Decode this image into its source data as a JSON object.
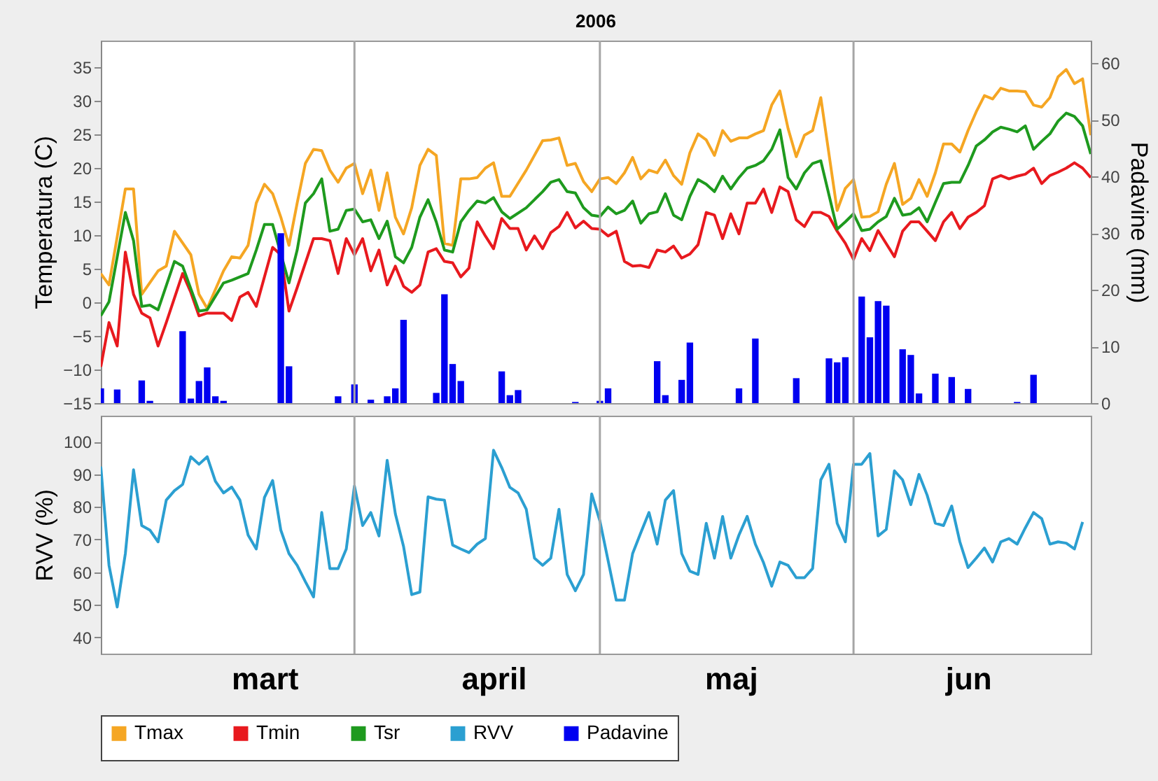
{
  "chart_data": [
    {
      "type": "line",
      "title": "2006",
      "ylabel": "Temperatura (C)",
      "y2label": "Padavine (mm)",
      "xlim": [
        "2006-03-01",
        "2006-06-30"
      ],
      "ylim": [
        -15,
        39
      ],
      "yticks": [
        -15,
        -10,
        -5,
        0,
        5,
        10,
        15,
        20,
        25,
        30,
        35
      ],
      "y2lim": [
        0,
        64
      ],
      "y2ticks": [
        0,
        10,
        20,
        30,
        40,
        50,
        60
      ],
      "tick_labels": "y",
      "legend": "bottom",
      "ref_lines": [
        {
          "axis": "x",
          "value": "2006-04-01",
          "color": "#a6a6a6"
        },
        {
          "axis": "x",
          "value": "2006-05-01",
          "color": "#a6a6a6"
        },
        {
          "axis": "x",
          "value": "2006-06-01",
          "color": "#a6a6a6"
        }
      ],
      "series": [
        {
          "name": "Tmax",
          "color": "#f5a623",
          "x": [
            "2006-03-01",
            "2006-03-02",
            "2006-03-04",
            "2006-03-05",
            "2006-03-06",
            "2006-03-08",
            "2006-03-09",
            "2006-03-10",
            "2006-03-12",
            "2006-03-13",
            "2006-03-14",
            "2006-03-16",
            "2006-03-17",
            "2006-03-18",
            "2006-03-19",
            "2006-03-20",
            "2006-03-21",
            "2006-03-22",
            "2006-03-23",
            "2006-03-24",
            "2006-03-25",
            "2006-03-26",
            "2006-03-27",
            "2006-03-28",
            "2006-03-29",
            "2006-03-30",
            "2006-03-31",
            "2006-04-01",
            "2006-04-02",
            "2006-04-03",
            "2006-04-04",
            "2006-04-05",
            "2006-04-06",
            "2006-04-07",
            "2006-04-08",
            "2006-04-09",
            "2006-04-10",
            "2006-04-11",
            "2006-04-12",
            "2006-04-13",
            "2006-04-14",
            "2006-04-15",
            "2006-04-16",
            "2006-04-17",
            "2006-04-18",
            "2006-04-19",
            "2006-04-20",
            "2006-04-22",
            "2006-04-24",
            "2006-04-25",
            "2006-04-26",
            "2006-04-27",
            "2006-04-28",
            "2006-04-29",
            "2006-04-30",
            "2006-05-01",
            "2006-05-02",
            "2006-05-03",
            "2006-05-04",
            "2006-05-05",
            "2006-05-06",
            "2006-05-07",
            "2006-05-08",
            "2006-05-09",
            "2006-05-10",
            "2006-05-11",
            "2006-05-12",
            "2006-05-13",
            "2006-05-14",
            "2006-05-15",
            "2006-05-16",
            "2006-05-17",
            "2006-05-18",
            "2006-05-19",
            "2006-05-20",
            "2006-05-21",
            "2006-05-22",
            "2006-05-23",
            "2006-05-24",
            "2006-05-25",
            "2006-05-26",
            "2006-05-27",
            "2006-05-28",
            "2006-05-30",
            "2006-05-31",
            "2006-06-01",
            "2006-06-02",
            "2006-06-03",
            "2006-06-04",
            "2006-06-05",
            "2006-06-06",
            "2006-06-07",
            "2006-06-08",
            "2006-06-09",
            "2006-06-10",
            "2006-06-11",
            "2006-06-12",
            "2006-06-13",
            "2006-06-14",
            "2006-06-15",
            "2006-06-16",
            "2006-06-17",
            "2006-06-18",
            "2006-06-19",
            "2006-06-20",
            "2006-06-21",
            "2006-06-22",
            "2006-06-23",
            "2006-06-24",
            "2006-06-25",
            "2006-06-26",
            "2006-06-27",
            "2006-06-28",
            "2006-06-29",
            "2006-06-30"
          ],
          "values": [
            4.3,
            2.6,
            16.9,
            16.9,
            1.2,
            4.7,
            5.4,
            10.6,
            7.1,
            1.2,
            -0.9,
            4.7,
            6.8,
            6.6,
            8.5,
            14.8,
            17.6,
            16.2,
            12.7,
            8.5,
            14.8,
            20.7,
            22.8,
            22.6,
            19.7,
            17.9,
            20.0,
            20.7,
            16.2,
            19.7,
            13.7,
            19.3,
            12.7,
            10.2,
            14.1,
            20.4,
            22.8,
            21.9,
            8.8,
            8.5,
            18.4,
            18.4,
            18.6,
            20.0,
            20.8,
            15.8,
            15.8,
            19.7,
            24.1,
            24.2,
            24.5,
            20.4,
            20.7,
            18.0,
            16.5,
            18.4,
            18.6,
            17.7,
            19.3,
            21.6,
            18.4,
            19.7,
            19.3,
            21.2,
            18.9,
            17.6,
            22.3,
            25.1,
            24.2,
            21.9,
            25.6,
            24.0,
            24.5,
            24.5,
            25.1,
            25.6,
            29.4,
            31.5,
            25.9,
            21.7,
            24.9,
            25.6,
            30.5,
            13.7,
            17.0,
            18.3,
            12.7,
            12.8,
            13.5,
            17.6,
            20.7,
            14.6,
            15.5,
            18.3,
            15.8,
            19.3,
            23.6,
            23.6,
            22.4,
            25.6,
            28.4,
            30.8,
            30.3,
            31.9,
            31.5,
            31.5,
            31.4,
            29.4,
            29.1,
            30.5,
            33.6,
            34.7,
            32.6,
            33.3,
            24.9
          ]
        },
        {
          "name": "Tmin",
          "color": "#e8191e",
          "x": [
            "2006-03-01",
            "2006-03-02",
            "2006-03-03",
            "2006-03-04",
            "2006-03-05",
            "2006-03-06",
            "2006-03-07",
            "2006-03-08",
            "2006-03-09",
            "2006-03-11",
            "2006-03-12",
            "2006-03-13",
            "2006-03-14",
            "2006-03-16",
            "2006-03-17",
            "2006-03-18",
            "2006-03-19",
            "2006-03-20",
            "2006-03-22",
            "2006-03-23",
            "2006-03-24",
            "2006-03-25",
            "2006-03-27",
            "2006-03-28",
            "2006-03-29",
            "2006-03-30",
            "2006-03-31",
            "2006-04-01",
            "2006-04-02",
            "2006-04-03",
            "2006-04-04",
            "2006-04-05",
            "2006-04-06",
            "2006-04-07",
            "2006-04-08",
            "2006-04-09",
            "2006-04-10",
            "2006-04-11",
            "2006-04-12",
            "2006-04-13",
            "2006-04-14",
            "2006-04-15",
            "2006-04-16",
            "2006-04-17",
            "2006-04-18",
            "2006-04-19",
            "2006-04-20",
            "2006-04-21",
            "2006-04-22",
            "2006-04-23",
            "2006-04-24",
            "2006-04-25",
            "2006-04-26",
            "2006-04-27",
            "2006-04-28",
            "2006-04-29",
            "2006-04-30",
            "2006-05-01",
            "2006-05-02",
            "2006-05-03",
            "2006-05-04",
            "2006-05-05",
            "2006-05-06",
            "2006-05-07",
            "2006-05-08",
            "2006-05-09",
            "2006-05-10",
            "2006-05-11",
            "2006-05-12",
            "2006-05-13",
            "2006-05-14",
            "2006-05-15",
            "2006-05-16",
            "2006-05-17",
            "2006-05-18",
            "2006-05-19",
            "2006-05-20",
            "2006-05-21",
            "2006-05-22",
            "2006-05-23",
            "2006-05-24",
            "2006-05-25",
            "2006-05-26",
            "2006-05-27",
            "2006-05-28",
            "2006-05-29",
            "2006-05-30",
            "2006-05-31",
            "2006-06-01",
            "2006-06-02",
            "2006-06-03",
            "2006-06-04",
            "2006-06-06",
            "2006-06-07",
            "2006-06-08",
            "2006-06-09",
            "2006-06-10",
            "2006-06-11",
            "2006-06-12",
            "2006-06-13",
            "2006-06-14",
            "2006-06-15",
            "2006-06-16",
            "2006-06-17",
            "2006-06-18",
            "2006-06-19",
            "2006-06-20",
            "2006-06-21",
            "2006-06-22",
            "2006-06-23",
            "2006-06-24",
            "2006-06-25",
            "2006-06-26",
            "2006-06-27",
            "2006-06-28",
            "2006-06-29",
            "2006-06-30"
          ],
          "values": [
            -9.6,
            -3.0,
            -6.5,
            7.5,
            1.2,
            -1.6,
            -2.3,
            -6.5,
            -3.0,
            4.3,
            1.5,
            -2.0,
            -1.6,
            -1.6,
            -2.7,
            0.8,
            1.5,
            -0.6,
            8.2,
            7.1,
            -1.3,
            2.2,
            9.5,
            9.5,
            9.2,
            4.3,
            9.5,
            7.1,
            9.5,
            4.7,
            7.8,
            2.6,
            5.4,
            2.4,
            1.5,
            2.6,
            7.5,
            8.0,
            6.1,
            5.9,
            3.8,
            5.1,
            12.0,
            9.9,
            8.0,
            12.5,
            11.0,
            11.0,
            7.8,
            9.9,
            8.0,
            10.4,
            11.3,
            13.4,
            11.1,
            12.1,
            11.0,
            10.9,
            9.9,
            10.6,
            6.1,
            5.4,
            5.5,
            5.2,
            7.8,
            7.5,
            8.4,
            6.6,
            7.2,
            8.6,
            13.4,
            13.0,
            9.5,
            13.2,
            10.2,
            14.8,
            14.8,
            16.9,
            13.4,
            17.2,
            16.5,
            12.3,
            11.3,
            13.4,
            13.4,
            12.8,
            10.6,
            8.8,
            6.4,
            9.5,
            7.7,
            10.7,
            6.8,
            10.6,
            12.0,
            12.0,
            10.6,
            9.2,
            12.0,
            13.4,
            11.0,
            12.7,
            13.4,
            14.4,
            18.4,
            18.9,
            18.4,
            18.8,
            19.1,
            20.0,
            17.7,
            18.9,
            19.4,
            20.0,
            20.8,
            20.0,
            18.6
          ]
        },
        {
          "name": "Tsr",
          "color": "#1e9a1e",
          "x": [
            "2006-03-01",
            "2006-03-02",
            "2006-03-04",
            "2006-03-05",
            "2006-03-06",
            "2006-03-07",
            "2006-03-08",
            "2006-03-10",
            "2006-03-11",
            "2006-03-13",
            "2006-03-14",
            "2006-03-16",
            "2006-03-17",
            "2006-03-19",
            "2006-03-20",
            "2006-03-21",
            "2006-03-22",
            "2006-03-24",
            "2006-03-25",
            "2006-03-26",
            "2006-03-27",
            "2006-03-28",
            "2006-03-29",
            "2006-03-30",
            "2006-03-31",
            "2006-04-01",
            "2006-04-02",
            "2006-04-03",
            "2006-04-04",
            "2006-04-05",
            "2006-04-06",
            "2006-04-07",
            "2006-04-08",
            "2006-04-09",
            "2006-04-10",
            "2006-04-11",
            "2006-04-12",
            "2006-04-13",
            "2006-04-14",
            "2006-04-15",
            "2006-04-16",
            "2006-04-17",
            "2006-04-18",
            "2006-04-19",
            "2006-04-20",
            "2006-04-22",
            "2006-04-24",
            "2006-04-25",
            "2006-04-26",
            "2006-04-27",
            "2006-04-28",
            "2006-04-29",
            "2006-04-30",
            "2006-05-01",
            "2006-05-02",
            "2006-05-03",
            "2006-05-04",
            "2006-05-05",
            "2006-05-06",
            "2006-05-07",
            "2006-05-08",
            "2006-05-09",
            "2006-05-10",
            "2006-05-11",
            "2006-05-12",
            "2006-05-13",
            "2006-05-14",
            "2006-05-15",
            "2006-05-16",
            "2006-05-17",
            "2006-05-18",
            "2006-05-19",
            "2006-05-20",
            "2006-05-21",
            "2006-05-22",
            "2006-05-23",
            "2006-05-24",
            "2006-05-25",
            "2006-05-26",
            "2006-05-27",
            "2006-05-28",
            "2006-05-30",
            "2006-05-31",
            "2006-06-01",
            "2006-06-02",
            "2006-06-03",
            "2006-06-04",
            "2006-06-05",
            "2006-06-06",
            "2006-06-07",
            "2006-06-08",
            "2006-06-09",
            "2006-06-10",
            "2006-06-11",
            "2006-06-12",
            "2006-06-13",
            "2006-06-14",
            "2006-06-15",
            "2006-06-16",
            "2006-06-17",
            "2006-06-18",
            "2006-06-19",
            "2006-06-20",
            "2006-06-21",
            "2006-06-22",
            "2006-06-23",
            "2006-06-24",
            "2006-06-25",
            "2006-06-26",
            "2006-06-27",
            "2006-06-28",
            "2006-06-29",
            "2006-06-30"
          ],
          "values": [
            -2.0,
            0.1,
            13.4,
            9.2,
            -0.6,
            -0.4,
            -1.1,
            6.1,
            5.4,
            -1.3,
            -1.1,
            2.9,
            3.3,
            4.3,
            7.8,
            11.6,
            11.6,
            2.9,
            7.8,
            14.8,
            16.2,
            18.4,
            10.6,
            10.9,
            13.7,
            13.9,
            12.0,
            12.3,
            9.5,
            12.1,
            6.8,
            5.9,
            8.2,
            12.7,
            15.3,
            12.0,
            7.8,
            7.5,
            12.0,
            13.7,
            15.1,
            14.8,
            15.6,
            13.5,
            12.5,
            14.1,
            16.5,
            17.9,
            18.3,
            16.5,
            16.3,
            14.1,
            13.0,
            12.8,
            14.2,
            13.2,
            13.7,
            15.1,
            11.8,
            13.2,
            13.5,
            16.2,
            13.0,
            12.3,
            15.8,
            18.3,
            17.6,
            16.5,
            18.8,
            16.9,
            18.6,
            20.0,
            20.4,
            21.1,
            22.8,
            25.7,
            18.6,
            16.9,
            19.3,
            20.7,
            21.1,
            10.9,
            12.0,
            13.2,
            10.7,
            10.9,
            12.0,
            12.8,
            15.5,
            13.0,
            13.2,
            14.1,
            12.0,
            14.9,
            17.7,
            17.9,
            17.9,
            20.4,
            23.3,
            24.2,
            25.4,
            26.1,
            25.8,
            25.4,
            26.3,
            22.8,
            24.0,
            25.1,
            27.0,
            28.2,
            27.7,
            26.3,
            22.1
          ]
        },
        {
          "name": "Padavine",
          "type": "bar",
          "axis": "y2",
          "color": "#0000f0",
          "x": [
            "2006-03-01",
            "2006-03-03",
            "2006-03-06",
            "2006-03-07",
            "2006-03-11",
            "2006-03-12",
            "2006-03-13",
            "2006-03-14",
            "2006-03-15",
            "2006-03-16",
            "2006-03-23",
            "2006-03-24",
            "2006-03-30",
            "2006-04-01",
            "2006-04-03",
            "2006-04-05",
            "2006-04-06",
            "2006-04-07",
            "2006-04-11",
            "2006-04-12",
            "2006-04-13",
            "2006-04-14",
            "2006-04-19",
            "2006-04-20",
            "2006-04-21",
            "2006-04-28",
            "2006-05-01",
            "2006-05-02",
            "2006-05-08",
            "2006-05-09",
            "2006-05-11",
            "2006-05-12",
            "2006-05-18",
            "2006-05-20",
            "2006-05-25",
            "2006-05-29",
            "2006-05-30",
            "2006-05-31",
            "2006-06-02",
            "2006-06-03",
            "2006-06-04",
            "2006-06-05",
            "2006-06-07",
            "2006-06-08",
            "2006-06-09",
            "2006-06-11",
            "2006-06-13",
            "2006-06-15",
            "2006-06-21",
            "2006-06-23"
          ],
          "values": [
            2.6,
            2.4,
            4.0,
            0.4,
            12.7,
            0.8,
            3.9,
            6.3,
            1.2,
            0.4,
            30.0,
            6.5,
            1.2,
            3.3,
            0.6,
            1.2,
            2.6,
            14.7,
            1.8,
            19.2,
            6.9,
            3.9,
            5.6,
            1.4,
            2.3,
            0.2,
            0.4,
            2.6,
            7.4,
            1.4,
            4.1,
            10.7,
            2.6,
            11.4,
            4.4,
            7.9,
            7.2,
            8.1,
            18.8,
            11.6,
            18.0,
            17.2,
            9.5,
            8.5,
            1.7,
            5.2,
            4.6,
            2.5,
            0.2,
            5.0
          ]
        }
      ]
    },
    {
      "type": "line",
      "ylabel": "RVV (%)",
      "xlim": [
        "2006-03-01",
        "2006-06-30"
      ],
      "xticks": [
        {
          "value": "2006-03-21",
          "label": "mart"
        },
        {
          "value": "2006-04-18",
          "label": "april"
        },
        {
          "value": "2006-05-17",
          "label": "maj"
        },
        {
          "value": "2006-06-15",
          "label": "jun"
        }
      ],
      "ylim": [
        35,
        108
      ],
      "yticks": [
        40,
        50,
        60,
        70,
        80,
        90,
        100
      ],
      "legend": "bottom",
      "ref_lines": [
        {
          "axis": "x",
          "value": "2006-04-01",
          "color": "#a6a6a6"
        },
        {
          "axis": "x",
          "value": "2006-05-01",
          "color": "#a6a6a6"
        },
        {
          "axis": "x",
          "value": "2006-06-01",
          "color": "#a6a6a6"
        }
      ],
      "x": [
        "2006-03-01",
        "2006-03-02",
        "2006-03-03",
        "2006-03-04",
        "2006-03-05",
        "2006-03-06",
        "2006-03-07",
        "2006-03-08",
        "2006-03-09",
        "2006-03-10",
        "2006-03-11",
        "2006-03-12",
        "2006-03-13",
        "2006-03-14",
        "2006-03-15",
        "2006-03-16",
        "2006-03-17",
        "2006-03-18",
        "2006-03-19",
        "2006-03-20",
        "2006-03-21",
        "2006-03-22",
        "2006-03-23",
        "2006-03-24",
        "2006-03-25",
        "2006-03-26",
        "2006-03-27",
        "2006-03-28",
        "2006-03-29",
        "2006-03-30",
        "2006-03-31",
        "2006-04-01",
        "2006-04-02",
        "2006-04-03",
        "2006-04-04",
        "2006-04-05",
        "2006-04-06",
        "2006-04-07",
        "2006-04-08",
        "2006-04-09",
        "2006-04-10",
        "2006-04-11",
        "2006-04-12",
        "2006-04-13",
        "2006-04-14",
        "2006-04-15",
        "2006-04-16",
        "2006-04-17",
        "2006-04-18",
        "2006-04-19",
        "2006-04-20",
        "2006-04-21",
        "2006-04-22",
        "2006-04-23",
        "2006-04-24",
        "2006-04-25",
        "2006-04-26",
        "2006-04-27",
        "2006-04-28",
        "2006-04-29",
        "2006-04-30",
        "2006-05-01",
        "2006-05-02",
        "2006-05-03",
        "2006-05-04",
        "2006-05-05",
        "2006-05-06",
        "2006-05-07",
        "2006-05-08",
        "2006-05-09",
        "2006-05-10",
        "2006-05-11",
        "2006-05-12",
        "2006-05-13",
        "2006-05-14",
        "2006-05-15",
        "2006-05-16",
        "2006-05-17",
        "2006-05-18",
        "2006-05-19",
        "2006-05-20",
        "2006-05-21",
        "2006-05-22",
        "2006-05-23",
        "2006-05-24",
        "2006-05-25",
        "2006-05-26",
        "2006-05-27",
        "2006-05-28",
        "2006-05-29",
        "2006-05-30",
        "2006-05-31",
        "2006-06-01",
        "2006-06-02",
        "2006-06-03",
        "2006-06-04",
        "2006-06-05",
        "2006-06-06",
        "2006-06-07",
        "2006-06-08",
        "2006-06-09",
        "2006-06-10",
        "2006-06-11",
        "2006-06-12",
        "2006-06-13",
        "2006-06-14",
        "2006-06-15",
        "2006-06-16",
        "2006-06-17",
        "2006-06-18",
        "2006-06-19",
        "2006-06-20",
        "2006-06-21",
        "2006-06-22",
        "2006-06-23",
        "2006-06-24",
        "2006-06-25",
        "2006-06-26",
        "2006-06-27",
        "2006-06-28",
        "2006-06-29"
      ],
      "series": [
        {
          "name": "RVV",
          "color": "#2b9fd1",
          "values": [
            92.4,
            62.1,
            49.3,
            65.7,
            91.4,
            74.3,
            72.9,
            69.3,
            82.1,
            85,
            86.9,
            95.4,
            93.1,
            95.4,
            87.9,
            84.3,
            86.1,
            82.1,
            71.4,
            67.1,
            82.9,
            88.1,
            72.9,
            65.7,
            62.1,
            57.1,
            52.4,
            78.3,
            61.1,
            61.1,
            67.1,
            86.4,
            74.3,
            78.3,
            71.1,
            94.3,
            77.9,
            67.9,
            53.1,
            53.9,
            83.1,
            82.4,
            82.1,
            68.3,
            67.1,
            66,
            68.6,
            70.3,
            97.4,
            92.1,
            86,
            84.3,
            79.3,
            64.3,
            62.1,
            64.3,
            79.3,
            59.3,
            54.3,
            59.3,
            84,
            75.7,
            63.6,
            51.4,
            51.4,
            65.7,
            72.1,
            78.3,
            68.6,
            82.1,
            85,
            65.7,
            60.3,
            59.3,
            75,
            64.3,
            77.1,
            64.3,
            71.4,
            77.1,
            68.6,
            62.9,
            55.7,
            63.1,
            62.1,
            58.3,
            58.3,
            61.1,
            88.3,
            93.1,
            75,
            69.3,
            93.1,
            93.1,
            96.4,
            71.1,
            73.1,
            91.1,
            88.3,
            80.7,
            90,
            83.6,
            75,
            74.3,
            80.3,
            69.3,
            61.4,
            64.3,
            67.4,
            63.1,
            69.3,
            70.3,
            68.6,
            73.6,
            78.3,
            76.4,
            68.6,
            69.3,
            68.9,
            67.1,
            75.4
          ]
        }
      ]
    }
  ]
}
